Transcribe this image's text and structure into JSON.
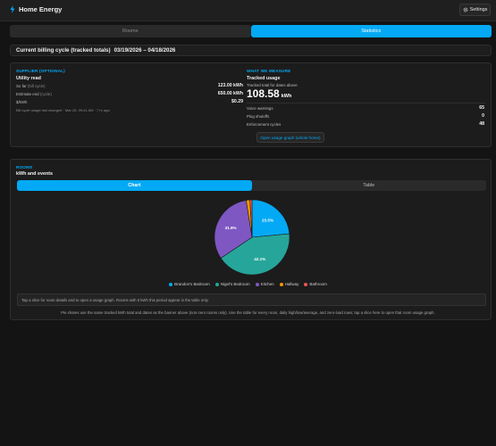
{
  "header": {
    "title": "Home Energy",
    "settings_label": "Settings"
  },
  "tabs": [
    {
      "label": "Rooms",
      "active": false
    },
    {
      "label": "Statistics",
      "active": true
    }
  ],
  "cycle": {
    "label": "Current billing cycle (tracked totals)",
    "dates": "03/19/2026 – 04/18/2026"
  },
  "supplier": {
    "section_label": "SUPPLIER (OPTIONAL)",
    "title": "Utility read",
    "so_far_label": "So far",
    "so_far_suffix": "(bill cycle)",
    "so_far_value": "123.00 kWh",
    "estimate_label": "Estimate end",
    "estimate_suffix": "(cycle)",
    "estimate_value": "650.00 kWh",
    "rate_label": "$/kWh",
    "rate_value": "$0.29",
    "changed_note": "Bill cycle usage last changed · Mar 25, 09:41 AM · 7 hr ago"
  },
  "measure": {
    "section_label": "WHAT WE MEASURE",
    "title": "Tracked usage",
    "subtitle": "Tracked total for dates above",
    "total_value": "108.58",
    "total_unit": "kWh",
    "rows": [
      {
        "label": "Voice warnings",
        "value": "65"
      },
      {
        "label": "Plug shutoffs",
        "value": "0"
      },
      {
        "label": "Enforcement cycles",
        "value": "48"
      }
    ],
    "open_graph_label": "Open usage graph (whole home)"
  },
  "rooms": {
    "section_label": "ROOMS",
    "title": "kWh and events",
    "view_options": [
      "Chart",
      "Table"
    ],
    "active_view": "Chart",
    "hint": "Tap a slice for room details and to open a usage graph. Rooms with 0 kWh this period appear in the table only.",
    "footer": "Pie shares use the same tracked kWh total and dates as the banner above (non-zero rooms only). Use the table for every room, daily high/low/average, and zero-load rows; tap a slice here to open that room usage graph."
  },
  "colors": {
    "accent": "#03a9f4",
    "background": "#141414",
    "panel": "#1c1c1c"
  },
  "chart_data": {
    "type": "pie",
    "title": "",
    "slices": [
      {
        "name": "Brandon's Bedroom",
        "value": 23.5,
        "label": "23.5%",
        "color": "#03a9f4"
      },
      {
        "name": "Nigel's Bedroom",
        "value": 42.1,
        "label": "42.1%",
        "color": "#26a69a"
      },
      {
        "name": "Kitchen",
        "value": 31.9,
        "label": "31.9%",
        "color": "#7e57c2"
      },
      {
        "name": "Hallway",
        "value": 1.6,
        "label": "",
        "color": "#ff9800"
      },
      {
        "name": "Bathroom",
        "value": 0.9,
        "label": "",
        "color": "#ef5350"
      }
    ],
    "legend_position": "bottom"
  }
}
